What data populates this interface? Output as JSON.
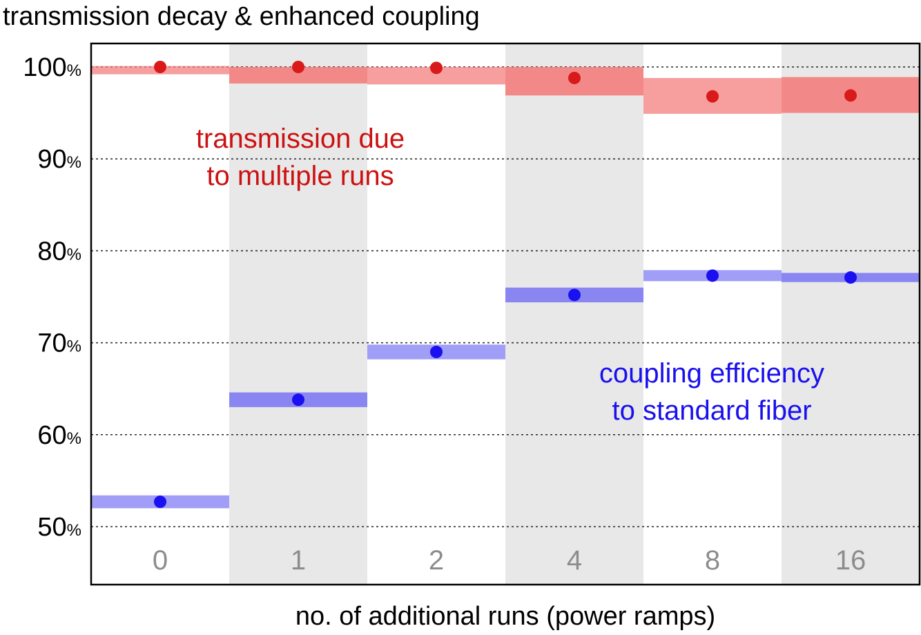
{
  "chart_data": {
    "type": "scatter",
    "title": "transmission decay & enhanced coupling",
    "xlabel": "no. of additional runs (power ramps)",
    "ylabel": "",
    "categories": [
      "0",
      "1",
      "2",
      "4",
      "8",
      "16"
    ],
    "ylim": [
      45,
      105
    ],
    "yticks": [
      50,
      60,
      70,
      80,
      90,
      100
    ],
    "ytick_suffix": "%",
    "grid": "horizontal dotted",
    "alternating_column_shading": true,
    "series": [
      {
        "color": "#d91a1a",
        "band_color": "#f47a7a",
        "values": [
          100.0,
          100.0,
          99.9,
          98.8,
          96.8,
          96.9
        ],
        "band_low": [
          99.2,
          98.2,
          98.1,
          96.9,
          94.9,
          95.0
        ],
        "band_high": [
          100.1,
          100.0,
          100.0,
          100.0,
          98.8,
          98.9
        ]
      },
      {
        "color": "#1a10f0",
        "band_color": "#7b78f2",
        "values": [
          52.7,
          63.8,
          69.0,
          75.2,
          77.3,
          77.1
        ],
        "band_low": [
          52.0,
          63.0,
          68.2,
          74.4,
          76.7,
          76.6
        ],
        "band_high": [
          53.4,
          64.6,
          69.8,
          76.0,
          77.9,
          77.6
        ]
      }
    ],
    "annotations": [
      {
        "lines": [
          "transmission due",
          "to multiple runs"
        ],
        "color": "#cc1111"
      },
      {
        "lines": [
          "coupling efficiency",
          "to standard fiber"
        ],
        "color": "#1a10ee"
      }
    ]
  }
}
